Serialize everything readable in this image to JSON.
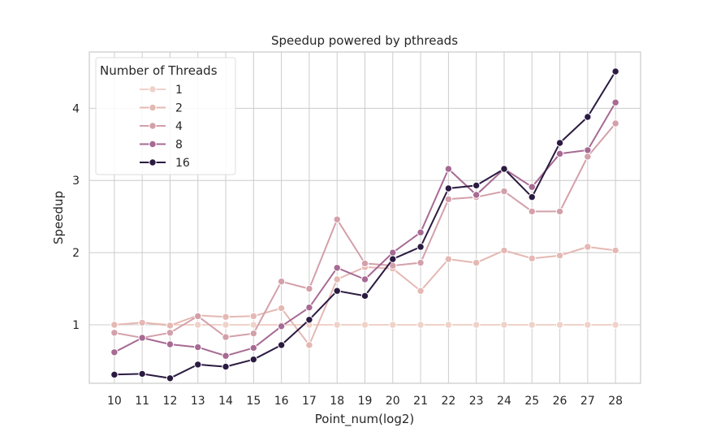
{
  "chart_data": {
    "type": "line",
    "title": "Speedup powered by pthreads",
    "xlabel": "Point_num(log2)",
    "ylabel": "Speedup",
    "x": [
      10,
      11,
      12,
      13,
      14,
      15,
      16,
      17,
      18,
      19,
      20,
      21,
      22,
      23,
      24,
      25,
      26,
      27,
      28
    ],
    "xlim": [
      9.1,
      28.9
    ],
    "ylim": [
      0.19,
      4.78
    ],
    "yticks": [
      1,
      2,
      3,
      4
    ],
    "grid": true,
    "legend": {
      "title": "Number of Threads",
      "placement": "top-left"
    },
    "series": [
      {
        "name": "1",
        "color": "#efd2c9",
        "values": [
          1,
          1.03,
          1,
          1,
          1,
          1,
          1,
          1,
          1,
          1,
          1,
          1,
          1,
          1,
          1,
          1,
          1,
          1,
          1
        ]
      },
      {
        "name": "2",
        "color": "#e5b8b3",
        "values": [
          1,
          1.03,
          0.99,
          1.13,
          1.11,
          1.12,
          1.23,
          0.72,
          1.63,
          1.8,
          1.78,
          1.47,
          1.91,
          1.86,
          2.03,
          1.92,
          1.96,
          2.08,
          2.03
        ]
      },
      {
        "name": "4",
        "color": "#d3a0aa",
        "values": [
          0.89,
          0.82,
          0.89,
          1.12,
          0.83,
          0.88,
          1.6,
          1.5,
          2.46,
          1.85,
          1.82,
          1.86,
          2.74,
          2.77,
          2.85,
          2.57,
          2.57,
          3.33,
          3.79
        ]
      },
      {
        "name": "8",
        "color": "#a76a93",
        "values": [
          0.62,
          0.82,
          0.73,
          0.69,
          0.57,
          0.68,
          0.98,
          1.24,
          1.79,
          1.63,
          2.0,
          2.28,
          3.16,
          2.8,
          3.16,
          2.91,
          3.37,
          3.42,
          4.08
        ]
      },
      {
        "name": "16",
        "color": "#2b1a41",
        "values": [
          0.31,
          0.32,
          0.26,
          0.45,
          0.42,
          0.52,
          0.72,
          1.07,
          1.47,
          1.4,
          1.91,
          2.08,
          2.89,
          2.93,
          3.16,
          2.77,
          3.52,
          3.88,
          4.51
        ]
      }
    ]
  }
}
